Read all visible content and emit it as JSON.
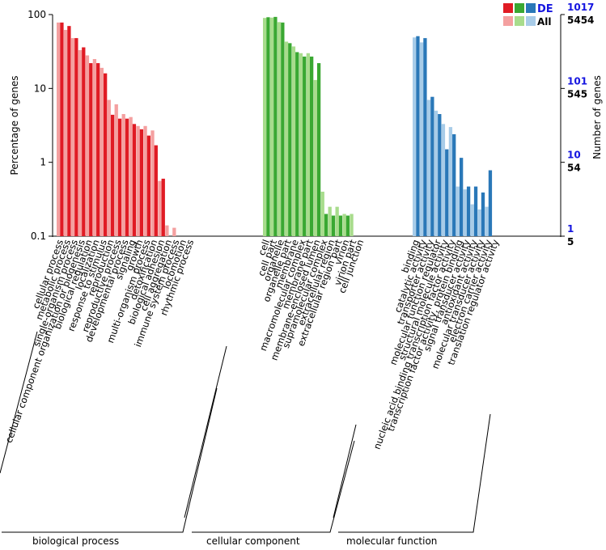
{
  "chart_data": {
    "type": "bar",
    "scale": "log",
    "ylabel_left": "Percentage of genes",
    "ylabel_right": "Number of genes",
    "ylim": [
      0.1,
      100
    ],
    "left_ticks": [
      "100",
      "10",
      "1",
      "0.1"
    ],
    "right_ticks_de": [
      "1017",
      "101",
      "10",
      "1"
    ],
    "right_ticks_all": [
      "5454",
      "545",
      "54",
      "5"
    ],
    "legend": {
      "de_label": "DE",
      "all_label": "All"
    },
    "colors": {
      "bp_all": "#f4a0a0",
      "bp_de": "#e01b24",
      "cc_all": "#a8dc8c",
      "cc_de": "#3aa832",
      "mf_all": "#a8cce8",
      "mf_de": "#2a78b8"
    },
    "groups": [
      {
        "name": "biological process",
        "key": "bp",
        "categories": [
          "cellular process",
          "metabolic process",
          "single-organism process",
          "cellular component organization or biogenesis",
          "biological regulation",
          "localization",
          "response to stimulus",
          "reproduction",
          "reproductive process",
          "developmental process",
          "signaling",
          "growth",
          "multi-organism process",
          "detoxification",
          "biological adhesion",
          "cell aggregation",
          "immune system process",
          "locomotion",
          "rhythmic process"
        ],
        "all": [
          78,
          62,
          48,
          33,
          28,
          25,
          19,
          7,
          6.1,
          4.5,
          4.1,
          3.1,
          3.1,
          2.7,
          0.56,
          0.14,
          0.13,
          0,
          0
        ],
        "de": [
          78,
          70,
          48,
          36,
          22,
          22,
          16,
          4.4,
          3.9,
          3.9,
          3.3,
          2.8,
          2.3,
          1.7,
          0.6,
          0,
          0,
          0,
          0
        ]
      },
      {
        "name": "cellular component",
        "key": "cc",
        "categories": [
          "cell",
          "cell part",
          "organelle",
          "organelle part",
          "membrane",
          "macromolecular complex",
          "membrane part",
          "membrane-enclosed lumen",
          "supramolecular complex",
          "extracellular region",
          "extracellular region part",
          "virion",
          "virion part",
          "cell junction"
        ],
        "all": [
          90,
          91,
          79,
          43,
          37,
          30,
          30,
          13,
          0.4,
          0.25,
          0.25,
          0.2,
          0.2,
          0
        ],
        "de": [
          92,
          93,
          78,
          41,
          31,
          27,
          27,
          22,
          0.2,
          0.19,
          0.19,
          0.19,
          0,
          0
        ]
      },
      {
        "name": "molecular function",
        "key": "mf",
        "categories": [
          "binding",
          "catalytic activity",
          "transporter activity",
          "molecular function regulator",
          "structural molecule activity",
          "nucleic acid binding transcription factor activity",
          "transcription factor activity, protein binding",
          "signal transducer activity",
          "antioxidant activity",
          "molecular transducer activity",
          "electron carrier activity",
          "translation regulator activity"
        ],
        "all": [
          49,
          42,
          7,
          5,
          3.3,
          3,
          0.47,
          0.43,
          0.27,
          0.23,
          0.25,
          0
        ],
        "de": [
          51,
          48,
          7.7,
          4.5,
          1.5,
          2.4,
          1.15,
          0.47,
          0.47,
          0.39,
          0.78,
          0
        ]
      }
    ]
  }
}
